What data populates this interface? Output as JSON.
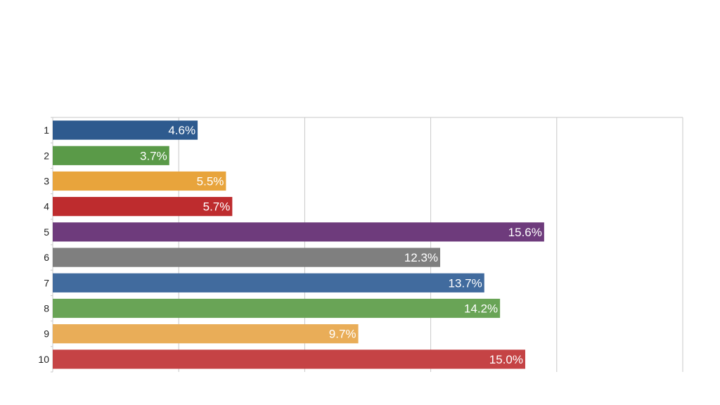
{
  "chart_data": {
    "type": "bar",
    "orientation": "horizontal",
    "title": "",
    "xlabel": "",
    "ylabel": "",
    "categories": [
      "1",
      "2",
      "3",
      "4",
      "5",
      "6",
      "7",
      "8",
      "9",
      "10"
    ],
    "values": [
      4.6,
      3.7,
      5.5,
      5.7,
      15.6,
      12.3,
      13.7,
      14.2,
      9.7,
      15.0
    ],
    "data_labels": [
      "4.6%",
      "3.7%",
      "5.5%",
      "5.7%",
      "15.6%",
      "12.3%",
      "13.7%",
      "14.2%",
      "9.7%",
      "15.0%"
    ],
    "colors": [
      "#2e5a8e",
      "#5a9a48",
      "#e8a43c",
      "#be2c2e",
      "#6e3b7c",
      "#7f7f7f",
      "#416b9e",
      "#69a456",
      "#e9ad58",
      "#c54345"
    ],
    "xlim": [
      0,
      20
    ],
    "x_gridlines": [
      0,
      4,
      8,
      12,
      16,
      20
    ],
    "grid": true,
    "legend": "none"
  }
}
